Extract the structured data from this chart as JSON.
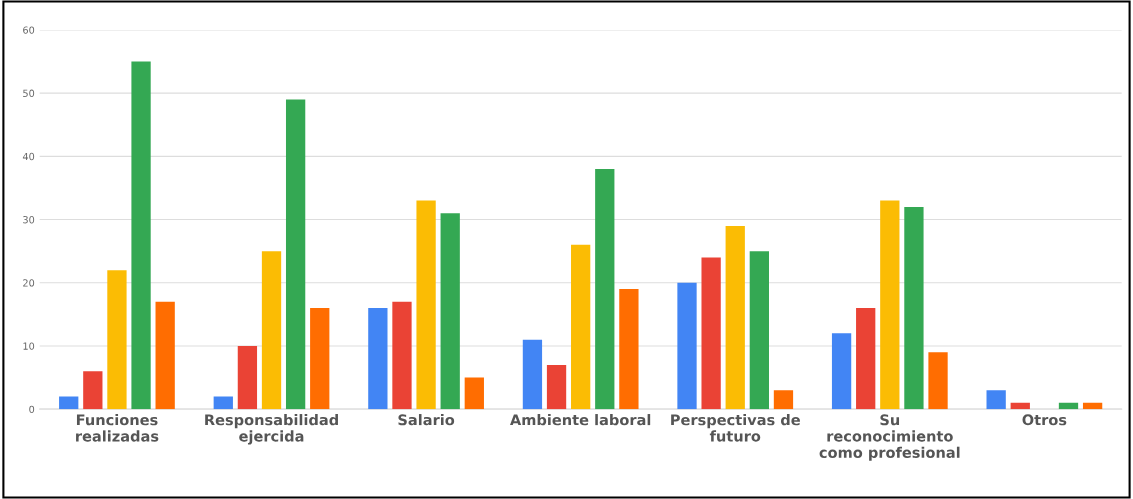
{
  "chart_data": {
    "type": "bar",
    "categories": [
      "Funciones\nrealizadas",
      "Responsabilidad\nejercida",
      "Salario",
      "Ambiente laboral",
      "Perspectivas de\nfuturo",
      "Su\nreconocimiento\ncomo profesional",
      "Otros"
    ],
    "series": [
      {
        "color": "#4285f4",
        "values": [
          2,
          2,
          16,
          11,
          20,
          12,
          3
        ]
      },
      {
        "color": "#ea4335",
        "values": [
          6,
          10,
          17,
          7,
          24,
          16,
          1
        ]
      },
      {
        "color": "#fbbc04",
        "values": [
          22,
          25,
          33,
          26,
          29,
          33,
          0
        ]
      },
      {
        "color": "#34a853",
        "values": [
          55,
          49,
          31,
          38,
          25,
          32,
          1
        ]
      },
      {
        "color": "#ff6d01",
        "values": [
          17,
          16,
          5,
          19,
          3,
          9,
          1
        ]
      }
    ],
    "ylim": [
      0,
      60
    ],
    "yticks": [
      0,
      10,
      20,
      30,
      40,
      50,
      60
    ],
    "grid": "y"
  }
}
